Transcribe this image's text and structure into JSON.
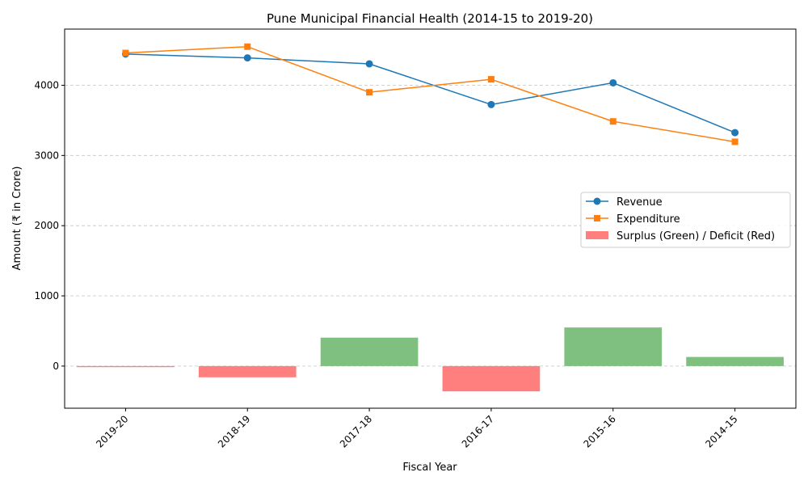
{
  "chart_data": {
    "type": "bar+line",
    "title": "Pune Municipal Financial Health (2014-15 to 2019-20)",
    "xlabel": "Fiscal Year",
    "ylabel": "Amount (₹ in Crore)",
    "ylim": [
      -600,
      4800
    ],
    "yticks": [
      0,
      1000,
      2000,
      3000,
      4000
    ],
    "grid": "y-dashed",
    "legend_position": "center-right",
    "categories": [
      "2019-20",
      "2018-19",
      "2017-18",
      "2016-17",
      "2015-16",
      "2014-15"
    ],
    "series": [
      {
        "name": "Revenue",
        "type": "line",
        "marker": "circle",
        "color": "#1f77b4",
        "values": [
          4445,
          4390,
          4305,
          3725,
          4035,
          3325
        ]
      },
      {
        "name": "Expenditure",
        "type": "line",
        "marker": "square",
        "color": "#ff7f0e",
        "values": [
          4460,
          4550,
          3900,
          4085,
          3485,
          3195
        ]
      },
      {
        "name": "Surplus (Green) / Deficit (Red)",
        "type": "bar",
        "positive_color": "#7fbf7f",
        "negative_color": "#ff7f7f",
        "values": [
          -15,
          -160,
          405,
          -360,
          550,
          130
        ]
      }
    ]
  }
}
